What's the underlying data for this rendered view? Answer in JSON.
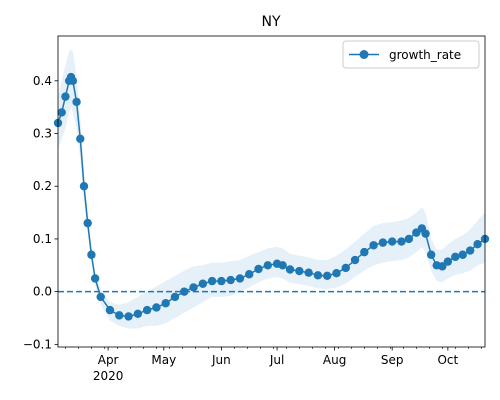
{
  "chart_data": {
    "type": "line",
    "title": "NY",
    "xlabel": "",
    "ylabel": "",
    "x_start_date": "2020-03-05",
    "x_end_date": "2020-10-21",
    "ylim": [
      -0.105,
      0.485
    ],
    "y_ticks": [
      -0.1,
      0.0,
      0.1,
      0.2,
      0.3,
      0.4
    ],
    "y_tick_labels": [
      "−0.1",
      "0.0",
      "0.1",
      "0.2",
      "0.3",
      "0.4"
    ],
    "x_ticks": [
      {
        "date": "2020-04-01",
        "label": "Apr",
        "sublabel": "2020"
      },
      {
        "date": "2020-05-01",
        "label": "May",
        "sublabel": ""
      },
      {
        "date": "2020-06-01",
        "label": "Jun",
        "sublabel": ""
      },
      {
        "date": "2020-07-01",
        "label": "Jul",
        "sublabel": ""
      },
      {
        "date": "2020-08-01",
        "label": "Aug",
        "sublabel": ""
      },
      {
        "date": "2020-09-01",
        "label": "Sep",
        "sublabel": ""
      },
      {
        "date": "2020-10-01",
        "label": "Oct",
        "sublabel": ""
      }
    ],
    "reference_line": {
      "y": 0.0,
      "style": "dashed"
    },
    "legend": {
      "position": "upper right",
      "entries": [
        "growth_rate"
      ]
    },
    "grid": false,
    "colors": {
      "line": "#1f77b4",
      "band": "#d6e6f4",
      "refline": "#1f77b4"
    },
    "series": [
      {
        "name": "growth_rate",
        "values": [
          {
            "x": "2020-03-05",
            "y": 0.32,
            "lower": 0.27,
            "upper": 0.37
          },
          {
            "x": "2020-03-07",
            "y": 0.34,
            "lower": 0.29,
            "upper": 0.4
          },
          {
            "x": "2020-03-09",
            "y": 0.37,
            "lower": 0.31,
            "upper": 0.43
          },
          {
            "x": "2020-03-11",
            "y": 0.4,
            "lower": 0.34,
            "upper": 0.455
          },
          {
            "x": "2020-03-12",
            "y": 0.407,
            "lower": 0.35,
            "upper": 0.46
          },
          {
            "x": "2020-03-13",
            "y": 0.4,
            "lower": 0.34,
            "upper": 0.455
          },
          {
            "x": "2020-03-15",
            "y": 0.36,
            "lower": 0.31,
            "upper": 0.41
          },
          {
            "x": "2020-03-17",
            "y": 0.29,
            "lower": 0.25,
            "upper": 0.33
          },
          {
            "x": "2020-03-19",
            "y": 0.2,
            "lower": 0.17,
            "upper": 0.23
          },
          {
            "x": "2020-03-21",
            "y": 0.13,
            "lower": 0.11,
            "upper": 0.15
          },
          {
            "x": "2020-03-23",
            "y": 0.07,
            "lower": 0.055,
            "upper": 0.085
          },
          {
            "x": "2020-03-25",
            "y": 0.025,
            "lower": 0.012,
            "upper": 0.038
          },
          {
            "x": "2020-03-28",
            "y": -0.01,
            "lower": -0.025,
            "upper": 0.005
          },
          {
            "x": "2020-04-02",
            "y": -0.035,
            "lower": -0.055,
            "upper": -0.02
          },
          {
            "x": "2020-04-07",
            "y": -0.045,
            "lower": -0.065,
            "upper": -0.025
          },
          {
            "x": "2020-04-12",
            "y": -0.047,
            "lower": -0.07,
            "upper": -0.02
          },
          {
            "x": "2020-04-17",
            "y": -0.042,
            "lower": -0.07,
            "upper": -0.01
          },
          {
            "x": "2020-04-22",
            "y": -0.035,
            "lower": -0.065,
            "upper": 0.0
          },
          {
            "x": "2020-04-27",
            "y": -0.03,
            "lower": -0.065,
            "upper": 0.01
          },
          {
            "x": "2020-05-02",
            "y": -0.022,
            "lower": -0.06,
            "upper": 0.02
          },
          {
            "x": "2020-05-07",
            "y": -0.01,
            "lower": -0.05,
            "upper": 0.03
          },
          {
            "x": "2020-05-12",
            "y": 0.0,
            "lower": -0.04,
            "upper": 0.04
          },
          {
            "x": "2020-05-17",
            "y": 0.008,
            "lower": -0.03,
            "upper": 0.048
          },
          {
            "x": "2020-05-22",
            "y": 0.015,
            "lower": -0.02,
            "upper": 0.05
          },
          {
            "x": "2020-05-27",
            "y": 0.02,
            "lower": -0.01,
            "upper": 0.055
          },
          {
            "x": "2020-06-01",
            "y": 0.02,
            "lower": -0.01,
            "upper": 0.055
          },
          {
            "x": "2020-06-06",
            "y": 0.022,
            "lower": -0.008,
            "upper": 0.058
          },
          {
            "x": "2020-06-11",
            "y": 0.025,
            "lower": 0.0,
            "upper": 0.06
          },
          {
            "x": "2020-06-16",
            "y": 0.033,
            "lower": 0.008,
            "upper": 0.068
          },
          {
            "x": "2020-06-21",
            "y": 0.043,
            "lower": 0.018,
            "upper": 0.075
          },
          {
            "x": "2020-06-26",
            "y": 0.05,
            "lower": 0.025,
            "upper": 0.082
          },
          {
            "x": "2020-07-01",
            "y": 0.053,
            "lower": 0.028,
            "upper": 0.085
          },
          {
            "x": "2020-07-04",
            "y": 0.05,
            "lower": 0.025,
            "upper": 0.082
          },
          {
            "x": "2020-07-08",
            "y": 0.042,
            "lower": 0.017,
            "upper": 0.072
          },
          {
            "x": "2020-07-13",
            "y": 0.039,
            "lower": 0.014,
            "upper": 0.068
          },
          {
            "x": "2020-07-18",
            "y": 0.036,
            "lower": 0.011,
            "upper": 0.065
          },
          {
            "x": "2020-07-23",
            "y": 0.031,
            "lower": 0.006,
            "upper": 0.06
          },
          {
            "x": "2020-07-28",
            "y": 0.03,
            "lower": 0.005,
            "upper": 0.06
          },
          {
            "x": "2020-08-02",
            "y": 0.035,
            "lower": 0.008,
            "upper": 0.068
          },
          {
            "x": "2020-08-07",
            "y": 0.045,
            "lower": 0.015,
            "upper": 0.08
          },
          {
            "x": "2020-08-12",
            "y": 0.06,
            "lower": 0.028,
            "upper": 0.095
          },
          {
            "x": "2020-08-17",
            "y": 0.075,
            "lower": 0.04,
            "upper": 0.11
          },
          {
            "x": "2020-08-22",
            "y": 0.088,
            "lower": 0.05,
            "upper": 0.125
          },
          {
            "x": "2020-08-27",
            "y": 0.093,
            "lower": 0.055,
            "upper": 0.13
          },
          {
            "x": "2020-09-01",
            "y": 0.095,
            "lower": 0.058,
            "upper": 0.132
          },
          {
            "x": "2020-09-06",
            "y": 0.095,
            "lower": 0.06,
            "upper": 0.135
          },
          {
            "x": "2020-09-10",
            "y": 0.1,
            "lower": 0.065,
            "upper": 0.14
          },
          {
            "x": "2020-09-14",
            "y": 0.112,
            "lower": 0.075,
            "upper": 0.15
          },
          {
            "x": "2020-09-17",
            "y": 0.12,
            "lower": 0.085,
            "upper": 0.16
          },
          {
            "x": "2020-09-19",
            "y": 0.11,
            "lower": 0.075,
            "upper": 0.15
          },
          {
            "x": "2020-09-22",
            "y": 0.07,
            "lower": 0.04,
            "upper": 0.1
          },
          {
            "x": "2020-09-25",
            "y": 0.05,
            "lower": 0.02,
            "upper": 0.08
          },
          {
            "x": "2020-09-28",
            "y": 0.048,
            "lower": 0.018,
            "upper": 0.08
          },
          {
            "x": "2020-10-01",
            "y": 0.057,
            "lower": 0.025,
            "upper": 0.09
          },
          {
            "x": "2020-10-05",
            "y": 0.066,
            "lower": 0.032,
            "upper": 0.1
          },
          {
            "x": "2020-10-09",
            "y": 0.07,
            "lower": 0.035,
            "upper": 0.107
          },
          {
            "x": "2020-10-13",
            "y": 0.078,
            "lower": 0.04,
            "upper": 0.118
          },
          {
            "x": "2020-10-17",
            "y": 0.09,
            "lower": 0.05,
            "upper": 0.135
          },
          {
            "x": "2020-10-21",
            "y": 0.1,
            "lower": 0.055,
            "upper": 0.15
          }
        ]
      }
    ]
  }
}
